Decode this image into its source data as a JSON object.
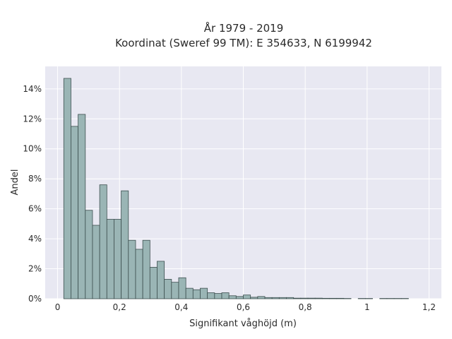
{
  "chart_data": {
    "type": "bar",
    "title": "År 1979 - 2019",
    "subtitle": "Koordinat (Sweref 99 TM): E 354633, N 6199942",
    "xlabel": "Signifikant våghöjd (m)",
    "ylabel": "Andel",
    "xlim": [
      -0.04,
      1.24
    ],
    "ylim": [
      0,
      0.155
    ],
    "x_ticks": [
      {
        "value": 0,
        "label": "0"
      },
      {
        "value": 0.2,
        "label": "0,2"
      },
      {
        "value": 0.4,
        "label": "0,4"
      },
      {
        "value": 0.6,
        "label": "0,6"
      },
      {
        "value": 0.8,
        "label": "0,8"
      },
      {
        "value": 1.0,
        "label": "1"
      },
      {
        "value": 1.2,
        "label": "1,2"
      }
    ],
    "y_ticks": [
      {
        "value": 0,
        "label": "0%"
      },
      {
        "value": 0.02,
        "label": "2%"
      },
      {
        "value": 0.04,
        "label": "4%"
      },
      {
        "value": 0.06,
        "label": "6%"
      },
      {
        "value": 0.08,
        "label": "8%"
      },
      {
        "value": 0.1,
        "label": "10%"
      },
      {
        "value": 0.12,
        "label": "12%"
      },
      {
        "value": 0.14,
        "label": "14%"
      }
    ],
    "grid": true,
    "bin_start": 0.02,
    "bin_width": 0.0232,
    "values": [
      0.147,
      0.115,
      0.123,
      0.059,
      0.049,
      0.076,
      0.053,
      0.053,
      0.072,
      0.039,
      0.033,
      0.039,
      0.021,
      0.025,
      0.013,
      0.011,
      0.014,
      0.007,
      0.006,
      0.007,
      0.004,
      0.0035,
      0.004,
      0.002,
      0.0015,
      0.0025,
      0.001,
      0.0015,
      0.0008,
      0.0008,
      0.0008,
      0.0008,
      0.0004,
      0.0004,
      0.0004,
      0.0004,
      0.0003,
      0.0003,
      0.0003,
      0.0002,
      0,
      0.0002,
      0.0002,
      0,
      0.0002,
      0.0002,
      0.0002,
      0.0002
    ],
    "colors": {
      "bar_fill": "#9ab5b5",
      "bar_stroke": "#3d4f4f",
      "plot_bg": "#e8e8f2",
      "grid": "#ffffff"
    }
  }
}
